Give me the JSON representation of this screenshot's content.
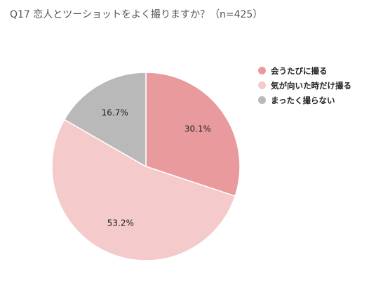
{
  "chart_data": {
    "type": "pie",
    "title": "Q17 恋人とツーショットをよく撮りますか？（n=425）",
    "slices": [
      {
        "name": "会うたびに撮る",
        "value": 30.1,
        "label": "30.1%",
        "color": "#E99A9D"
      },
      {
        "name": "気が向いた時だけ撮る",
        "value": 53.2,
        "label": "53.2%",
        "color": "#F4CACB"
      },
      {
        "name": "まったく撮らない",
        "value": 16.7,
        "label": "16.7%",
        "color": "#B9B9B9"
      }
    ],
    "legend_position": "right"
  }
}
